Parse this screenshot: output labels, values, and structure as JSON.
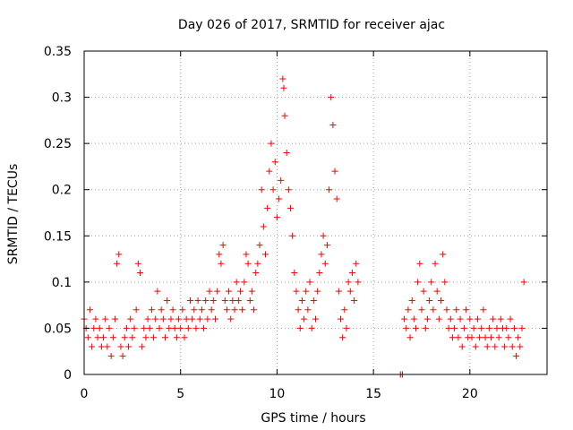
{
  "chart_data": {
    "type": "scatter",
    "title": "Day 026 of 2017, SRMTID for receiver ajac",
    "xlabel": "GPS time / hours",
    "ylabel": "SRMTID / TECUs",
    "xlim": [
      0,
      24
    ],
    "ylim": [
      0,
      0.35
    ],
    "xticks": [
      0,
      5,
      10,
      15,
      20
    ],
    "xtick_labels": [
      "0",
      "5",
      "10",
      "15",
      "20"
    ],
    "yticks": [
      0,
      0.05,
      0.1,
      0.15,
      0.2,
      0.25,
      0.3,
      0.35
    ],
    "ytick_labels": [
      "0",
      "0.05",
      "0.1",
      "0.15",
      "0.2",
      "0.25",
      "0.3",
      "0.35"
    ],
    "grid": true,
    "marker": "+",
    "color": "#ff0000",
    "series": [
      {
        "name": "SRMTID",
        "points": [
          [
            0.0,
            0.06
          ],
          [
            0.1,
            0.05
          ],
          [
            0.2,
            0.04
          ],
          [
            0.3,
            0.07
          ],
          [
            0.4,
            0.03
          ],
          [
            0.5,
            0.05
          ],
          [
            0.6,
            0.06
          ],
          [
            0.7,
            0.04
          ],
          [
            0.8,
            0.05
          ],
          [
            0.9,
            0.03
          ],
          [
            1.0,
            0.04
          ],
          [
            1.1,
            0.06
          ],
          [
            1.2,
            0.03
          ],
          [
            1.3,
            0.05
          ],
          [
            1.4,
            0.02
          ],
          [
            1.5,
            0.04
          ],
          [
            1.6,
            0.06
          ],
          [
            1.7,
            0.12
          ],
          [
            1.8,
            0.13
          ],
          [
            1.9,
            0.03
          ],
          [
            2.0,
            0.02
          ],
          [
            2.1,
            0.04
          ],
          [
            2.2,
            0.05
          ],
          [
            2.3,
            0.03
          ],
          [
            2.4,
            0.06
          ],
          [
            2.5,
            0.04
          ],
          [
            2.6,
            0.05
          ],
          [
            2.7,
            0.07
          ],
          [
            2.8,
            0.12
          ],
          [
            2.9,
            0.11
          ],
          [
            3.0,
            0.03
          ],
          [
            3.1,
            0.05
          ],
          [
            3.2,
            0.04
          ],
          [
            3.3,
            0.06
          ],
          [
            3.4,
            0.05
          ],
          [
            3.5,
            0.07
          ],
          [
            3.6,
            0.04
          ],
          [
            3.7,
            0.06
          ],
          [
            3.8,
            0.09
          ],
          [
            3.9,
            0.05
          ],
          [
            4.0,
            0.07
          ],
          [
            4.1,
            0.06
          ],
          [
            4.2,
            0.04
          ],
          [
            4.3,
            0.08
          ],
          [
            4.4,
            0.05
          ],
          [
            4.5,
            0.06
          ],
          [
            4.6,
            0.07
          ],
          [
            4.7,
            0.05
          ],
          [
            4.8,
            0.04
          ],
          [
            4.9,
            0.06
          ],
          [
            5.0,
            0.05
          ],
          [
            5.1,
            0.07
          ],
          [
            5.2,
            0.04
          ],
          [
            5.3,
            0.06
          ],
          [
            5.4,
            0.05
          ],
          [
            5.5,
            0.08
          ],
          [
            5.6,
            0.06
          ],
          [
            5.7,
            0.07
          ],
          [
            5.8,
            0.05
          ],
          [
            5.9,
            0.08
          ],
          [
            6.0,
            0.06
          ],
          [
            6.1,
            0.07
          ],
          [
            6.2,
            0.05
          ],
          [
            6.3,
            0.08
          ],
          [
            6.4,
            0.06
          ],
          [
            6.5,
            0.09
          ],
          [
            6.6,
            0.07
          ],
          [
            6.7,
            0.08
          ],
          [
            6.8,
            0.06
          ],
          [
            6.9,
            0.09
          ],
          [
            7.0,
            0.13
          ],
          [
            7.1,
            0.12
          ],
          [
            7.2,
            0.14
          ],
          [
            7.3,
            0.08
          ],
          [
            7.4,
            0.07
          ],
          [
            7.5,
            0.09
          ],
          [
            7.6,
            0.06
          ],
          [
            7.7,
            0.08
          ],
          [
            7.8,
            0.07
          ],
          [
            7.9,
            0.1
          ],
          [
            8.0,
            0.08
          ],
          [
            8.1,
            0.09
          ],
          [
            8.2,
            0.07
          ],
          [
            8.3,
            0.1
          ],
          [
            8.4,
            0.13
          ],
          [
            8.5,
            0.12
          ],
          [
            8.6,
            0.08
          ],
          [
            8.7,
            0.09
          ],
          [
            8.8,
            0.07
          ],
          [
            8.9,
            0.11
          ],
          [
            9.0,
            0.12
          ],
          [
            9.1,
            0.14
          ],
          [
            9.2,
            0.2
          ],
          [
            9.3,
            0.16
          ],
          [
            9.4,
            0.13
          ],
          [
            9.5,
            0.18
          ],
          [
            9.6,
            0.22
          ],
          [
            9.7,
            0.25
          ],
          [
            9.8,
            0.2
          ],
          [
            9.9,
            0.23
          ],
          [
            10.0,
            0.17
          ],
          [
            10.1,
            0.19
          ],
          [
            10.2,
            0.21
          ],
          [
            10.3,
            0.32
          ],
          [
            10.35,
            0.31
          ],
          [
            10.4,
            0.28
          ],
          [
            10.5,
            0.24
          ],
          [
            10.6,
            0.2
          ],
          [
            10.7,
            0.18
          ],
          [
            10.8,
            0.15
          ],
          [
            10.9,
            0.11
          ],
          [
            11.0,
            0.09
          ],
          [
            11.1,
            0.07
          ],
          [
            11.2,
            0.05
          ],
          [
            11.3,
            0.08
          ],
          [
            11.4,
            0.06
          ],
          [
            11.5,
            0.09
          ],
          [
            11.6,
            0.07
          ],
          [
            11.7,
            0.1
          ],
          [
            11.8,
            0.05
          ],
          [
            11.9,
            0.08
          ],
          [
            12.0,
            0.06
          ],
          [
            12.1,
            0.09
          ],
          [
            12.2,
            0.11
          ],
          [
            12.3,
            0.13
          ],
          [
            12.4,
            0.15
          ],
          [
            12.5,
            0.12
          ],
          [
            12.6,
            0.14
          ],
          [
            12.7,
            0.2
          ],
          [
            12.8,
            0.3
          ],
          [
            12.9,
            0.27
          ],
          [
            13.0,
            0.22
          ],
          [
            13.1,
            0.19
          ],
          [
            13.2,
            0.09
          ],
          [
            13.3,
            0.06
          ],
          [
            13.4,
            0.04
          ],
          [
            13.5,
            0.07
          ],
          [
            13.6,
            0.05
          ],
          [
            13.7,
            0.1
          ],
          [
            13.8,
            0.09
          ],
          [
            13.9,
            0.11
          ],
          [
            14.0,
            0.08
          ],
          [
            14.1,
            0.12
          ],
          [
            14.2,
            0.1
          ],
          [
            16.4,
            0.0
          ],
          [
            16.5,
            0.0
          ],
          [
            16.6,
            0.06
          ],
          [
            16.7,
            0.05
          ],
          [
            16.8,
            0.07
          ],
          [
            16.9,
            0.04
          ],
          [
            17.0,
            0.08
          ],
          [
            17.1,
            0.06
          ],
          [
            17.2,
            0.05
          ],
          [
            17.3,
            0.1
          ],
          [
            17.4,
            0.12
          ],
          [
            17.5,
            0.07
          ],
          [
            17.6,
            0.09
          ],
          [
            17.7,
            0.05
          ],
          [
            17.8,
            0.06
          ],
          [
            17.9,
            0.08
          ],
          [
            18.0,
            0.1
          ],
          [
            18.1,
            0.07
          ],
          [
            18.2,
            0.12
          ],
          [
            18.3,
            0.09
          ],
          [
            18.4,
            0.06
          ],
          [
            18.5,
            0.08
          ],
          [
            18.6,
            0.13
          ],
          [
            18.7,
            0.1
          ],
          [
            18.8,
            0.07
          ],
          [
            18.9,
            0.05
          ],
          [
            19.0,
            0.06
          ],
          [
            19.1,
            0.04
          ],
          [
            19.2,
            0.05
          ],
          [
            19.3,
            0.07
          ],
          [
            19.4,
            0.04
          ],
          [
            19.5,
            0.06
          ],
          [
            19.6,
            0.03
          ],
          [
            19.7,
            0.05
          ],
          [
            19.8,
            0.07
          ],
          [
            19.9,
            0.04
          ],
          [
            20.0,
            0.06
          ],
          [
            20.1,
            0.04
          ],
          [
            20.2,
            0.05
          ],
          [
            20.3,
            0.03
          ],
          [
            20.4,
            0.06
          ],
          [
            20.5,
            0.04
          ],
          [
            20.6,
            0.05
          ],
          [
            20.7,
            0.07
          ],
          [
            20.8,
            0.04
          ],
          [
            20.9,
            0.03
          ],
          [
            21.0,
            0.05
          ],
          [
            21.1,
            0.04
          ],
          [
            21.2,
            0.06
          ],
          [
            21.3,
            0.03
          ],
          [
            21.4,
            0.05
          ],
          [
            21.5,
            0.04
          ],
          [
            21.6,
            0.06
          ],
          [
            21.7,
            0.05
          ],
          [
            21.8,
            0.03
          ],
          [
            21.9,
            0.05
          ],
          [
            22.0,
            0.04
          ],
          [
            22.1,
            0.06
          ],
          [
            22.2,
            0.03
          ],
          [
            22.3,
            0.05
          ],
          [
            22.4,
            0.02
          ],
          [
            22.5,
            0.04
          ],
          [
            22.6,
            0.03
          ],
          [
            22.7,
            0.05
          ],
          [
            22.8,
            0.1
          ]
        ]
      }
    ]
  }
}
